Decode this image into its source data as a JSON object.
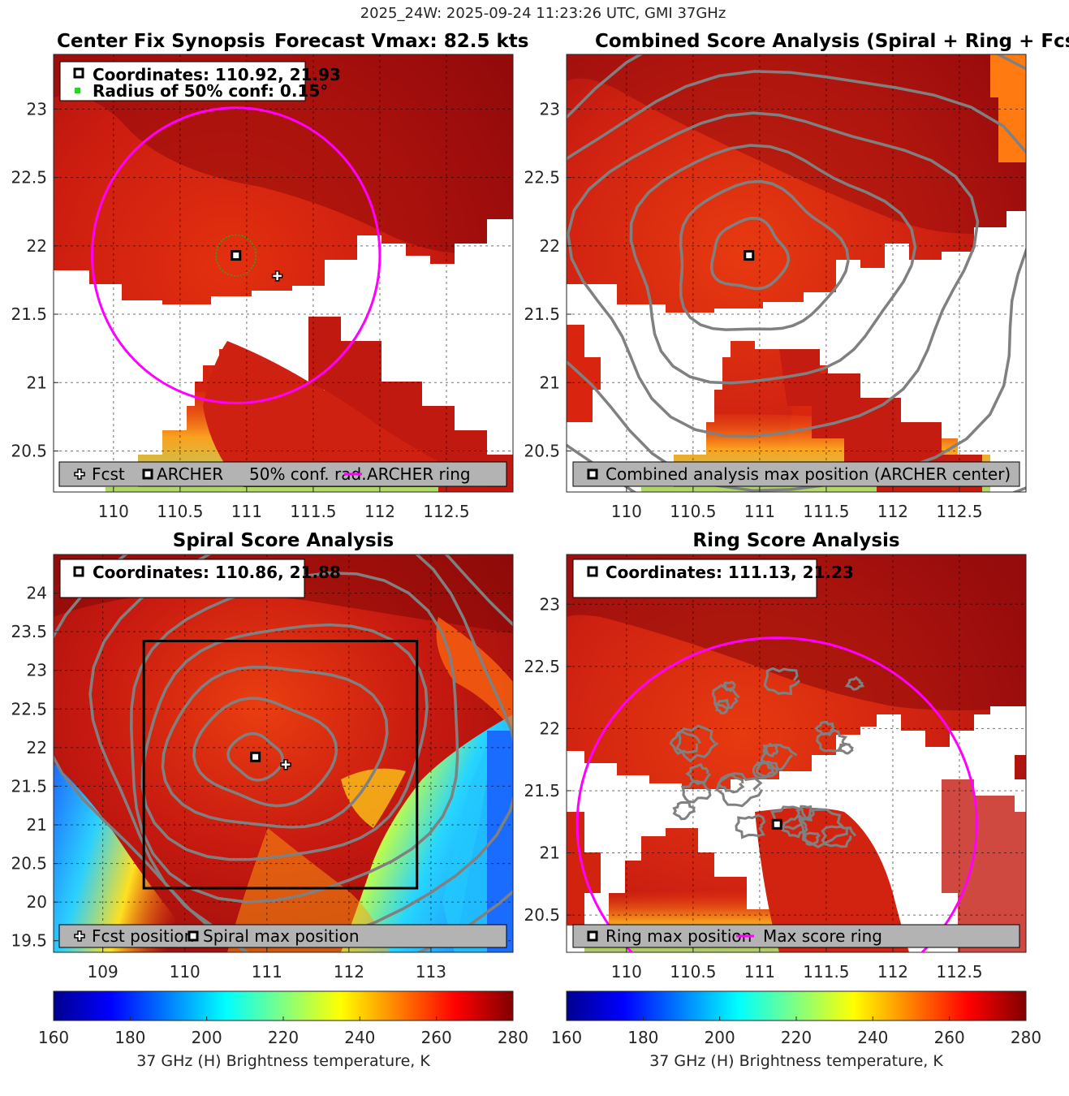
{
  "suptitle": "2025_24W: 2025-09-24 11:23:26 UTC, GMI 37GHz",
  "colors": {
    "magenta": "#ff00ff",
    "contour": "#808080",
    "legend_bg": "#b3b3b3"
  },
  "colorbar": {
    "min": 160,
    "max": 280,
    "ticks": [
      "160",
      "180",
      "200",
      "220",
      "240",
      "260",
      "280"
    ],
    "label": "37 GHz (H) Brightness temperature, K"
  },
  "chart_data": [
    {
      "id": "synopsis",
      "type": "heatmap",
      "title_left": "Center Fix Synopsis",
      "title_right": "Forecast Vmax: 82.5 kts",
      "xlim": [
        109.55,
        113.0
      ],
      "ylim": [
        20.2,
        23.4
      ],
      "xticks": [
        "110",
        "110.5",
        "111",
        "111.5",
        "112",
        "112.5"
      ],
      "yticks": [
        "20.5",
        "21",
        "21.5",
        "22",
        "22.5",
        "23"
      ],
      "xtick_values": [
        110,
        110.5,
        111,
        111.5,
        112,
        112.5
      ],
      "ytick_values": [
        20.5,
        21,
        21.5,
        22,
        22.5,
        23
      ],
      "info_lines": [
        "Coordinates: 110.92, 21.93",
        "Radius of 50% conf: 0.15°"
      ],
      "legend": [
        "Fcst",
        "ARCHER",
        "50% conf. rad.",
        "ARCHER ring"
      ],
      "archer_center": [
        110.92,
        21.93
      ],
      "fcst_position": [
        111.23,
        21.78
      ],
      "conf_radius_deg": 0.15,
      "ring_radius_deg": 1.08
    },
    {
      "id": "combined",
      "type": "heatmap",
      "title": "Combined Score Analysis (Spiral + Ring + Fcst_Pe",
      "xlim": [
        109.55,
        113.0
      ],
      "ylim": [
        20.2,
        23.4
      ],
      "xticks": [
        "110",
        "110.5",
        "111",
        "111.5",
        "112",
        "112.5"
      ],
      "yticks": [
        "20.5",
        "21",
        "21.5",
        "22",
        "22.5",
        "23"
      ],
      "xtick_values": [
        110,
        110.5,
        111,
        111.5,
        112,
        112.5
      ],
      "ytick_values": [
        20.5,
        21,
        21.5,
        22,
        22.5,
        23
      ],
      "legend": [
        "Combined analysis max position (ARCHER center)"
      ],
      "max_position": [
        110.92,
        21.93
      ]
    },
    {
      "id": "spiral",
      "type": "heatmap",
      "title": "Spiral Score Analysis",
      "xlim": [
        108.4,
        114.0
      ],
      "ylim": [
        19.35,
        24.5
      ],
      "xticks": [
        "109",
        "110",
        "111",
        "112",
        "113"
      ],
      "yticks": [
        "19.5",
        "20",
        "20.5",
        "21",
        "21.5",
        "22",
        "22.5",
        "23",
        "23.5",
        "24"
      ],
      "xtick_values": [
        109,
        110,
        111,
        112,
        113
      ],
      "ytick_values": [
        19.5,
        20,
        20.5,
        21,
        21.5,
        22,
        22.5,
        23,
        23.5,
        24
      ],
      "info_lines": [
        "Coordinates: 110.86, 21.88"
      ],
      "legend": [
        "Fcst position",
        "Spiral max position"
      ],
      "spiral_max": [
        110.86,
        21.88
      ],
      "fcst_position": [
        111.23,
        21.78
      ],
      "search_box": [
        109.5,
        20.18,
        112.83,
        23.38
      ]
    },
    {
      "id": "ring",
      "type": "heatmap",
      "title": "Ring Score Analysis",
      "xlim": [
        109.55,
        113.0
      ],
      "ylim": [
        20.2,
        23.4
      ],
      "xticks": [
        "110",
        "110.5",
        "111",
        "111.5",
        "112",
        "112.5"
      ],
      "yticks": [
        "20.5",
        "21",
        "21.5",
        "22",
        "22.5",
        "23"
      ],
      "xtick_values": [
        110,
        110.5,
        111,
        111.5,
        112,
        112.5
      ],
      "ytick_values": [
        20.5,
        21,
        21.5,
        22,
        22.5,
        23
      ],
      "info_lines": [
        "Coordinates: 111.13, 21.23"
      ],
      "legend": [
        "Ring max position",
        "Max score ring"
      ],
      "ring_max": [
        111.13,
        21.23
      ],
      "ring_radius_deg": 1.5
    }
  ]
}
